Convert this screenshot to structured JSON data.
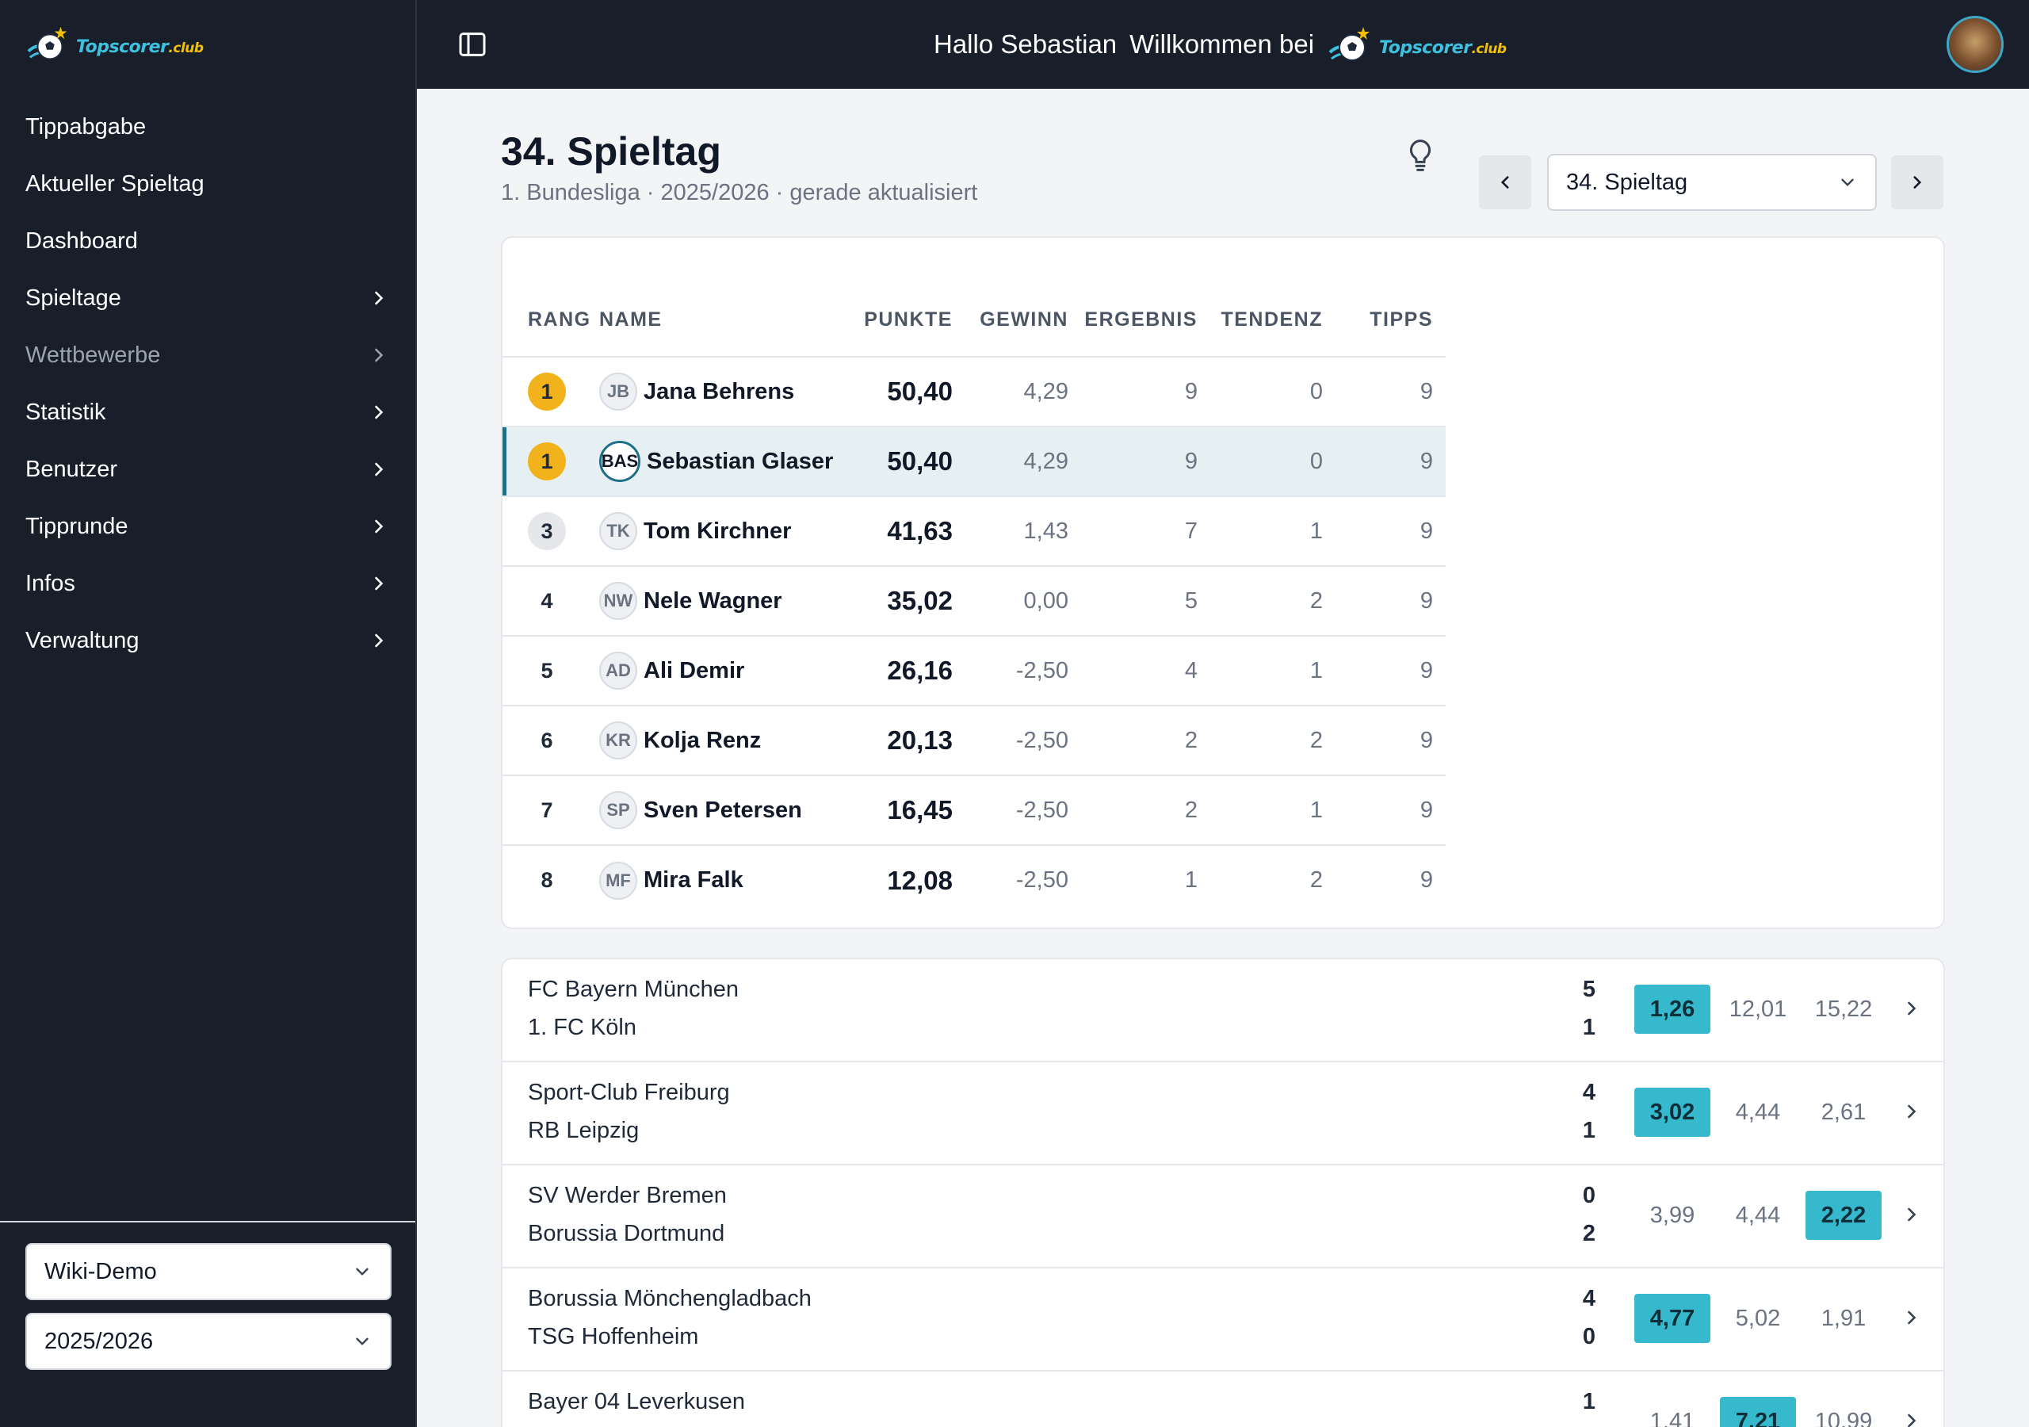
{
  "brand": {
    "name": "Topscorer",
    "suffix": ".club"
  },
  "sidebar": {
    "items": [
      {
        "label": "Tippabgabe",
        "chevron": false,
        "muted": false
      },
      {
        "label": "Aktueller Spieltag",
        "chevron": false,
        "muted": false
      },
      {
        "label": "Dashboard",
        "chevron": false,
        "muted": false
      },
      {
        "label": "Spieltage",
        "chevron": true,
        "muted": false
      },
      {
        "label": "Wettbewerbe",
        "chevron": true,
        "muted": true
      },
      {
        "label": "Statistik",
        "chevron": true,
        "muted": false
      },
      {
        "label": "Benutzer",
        "chevron": true,
        "muted": false
      },
      {
        "label": "Tipprunde",
        "chevron": true,
        "muted": false
      },
      {
        "label": "Infos",
        "chevron": true,
        "muted": false
      },
      {
        "label": "Verwaltung",
        "chevron": true,
        "muted": false
      }
    ],
    "group_select": "Wiki-Demo",
    "season_select": "2025/2026"
  },
  "header": {
    "greeting": "Hallo Sebastian",
    "welcome": "Willkommen bei"
  },
  "page": {
    "title": "34. Spieltag",
    "subtitle": "1. Bundesliga · 2025/2026 · gerade aktualisiert",
    "matchday_select": "34. Spieltag"
  },
  "ranking": {
    "columns": [
      "RANG",
      "NAME",
      "PUNKTE",
      "GEWINN",
      "ERGEBNIS",
      "TENDENZ",
      "TIPPS"
    ],
    "rows": [
      {
        "rank": "1",
        "badge": "gold",
        "initials": "JB",
        "name": "Jana Behrens",
        "points": "50,40",
        "gewinn": "4,29",
        "ergebnis": "9",
        "tendenz": "0",
        "tipps": "9",
        "me": false
      },
      {
        "rank": "1",
        "badge": "gold",
        "initials": "BAS",
        "name": "Sebastian Glaser",
        "points": "50,40",
        "gewinn": "4,29",
        "ergebnis": "9",
        "tendenz": "0",
        "tipps": "9",
        "me": true
      },
      {
        "rank": "3",
        "badge": "silver",
        "initials": "TK",
        "name": "Tom Kirchner",
        "points": "41,63",
        "gewinn": "1,43",
        "ergebnis": "7",
        "tendenz": "1",
        "tipps": "9",
        "me": false
      },
      {
        "rank": "4",
        "badge": "none",
        "initials": "NW",
        "name": "Nele Wagner",
        "points": "35,02",
        "gewinn": "0,00",
        "ergebnis": "5",
        "tendenz": "2",
        "tipps": "9",
        "me": false
      },
      {
        "rank": "5",
        "badge": "none",
        "initials": "AD",
        "name": "Ali Demir",
        "points": "26,16",
        "gewinn": "-2,50",
        "ergebnis": "4",
        "tendenz": "1",
        "tipps": "9",
        "me": false
      },
      {
        "rank": "6",
        "badge": "none",
        "initials": "KR",
        "name": "Kolja Renz",
        "points": "20,13",
        "gewinn": "-2,50",
        "ergebnis": "2",
        "tendenz": "2",
        "tipps": "9",
        "me": false
      },
      {
        "rank": "7",
        "badge": "none",
        "initials": "SP",
        "name": "Sven Petersen",
        "points": "16,45",
        "gewinn": "-2,50",
        "ergebnis": "2",
        "tendenz": "1",
        "tipps": "9",
        "me": false
      },
      {
        "rank": "8",
        "badge": "none",
        "initials": "MF",
        "name": "Mira Falk",
        "points": "12,08",
        "gewinn": "-2,50",
        "ergebnis": "1",
        "tendenz": "2",
        "tipps": "9",
        "me": false
      }
    ]
  },
  "matches": [
    {
      "home": "FC Bayern München",
      "away": "1. FC Köln",
      "home_goals": "5",
      "away_goals": "1",
      "odds": [
        "1,26",
        "12,01",
        "15,22"
      ],
      "highlight": 0
    },
    {
      "home": "Sport-Club Freiburg",
      "away": "RB Leipzig",
      "home_goals": "4",
      "away_goals": "1",
      "odds": [
        "3,02",
        "4,44",
        "2,61"
      ],
      "highlight": 0
    },
    {
      "home": "SV Werder Bremen",
      "away": "Borussia Dortmund",
      "home_goals": "0",
      "away_goals": "2",
      "odds": [
        "3,99",
        "4,44",
        "2,22"
      ],
      "highlight": 2
    },
    {
      "home": "Borussia Mönchengladbach",
      "away": "TSG Hoffenheim",
      "home_goals": "4",
      "away_goals": "0",
      "odds": [
        "4,77",
        "5,02",
        "1,91"
      ],
      "highlight": 0
    },
    {
      "home": "Bayer 04 Leverkusen",
      "away": "",
      "home_goals": "1",
      "away_goals": "",
      "odds": [
        "1,41",
        "7,21",
        "10,99"
      ],
      "highlight": 1
    }
  ],
  "colors": {
    "sidebar_bg": "#181f2b",
    "accent": "#36b8cd",
    "gold": "#f2b21b",
    "highlight_row": "#e6f0f3"
  }
}
